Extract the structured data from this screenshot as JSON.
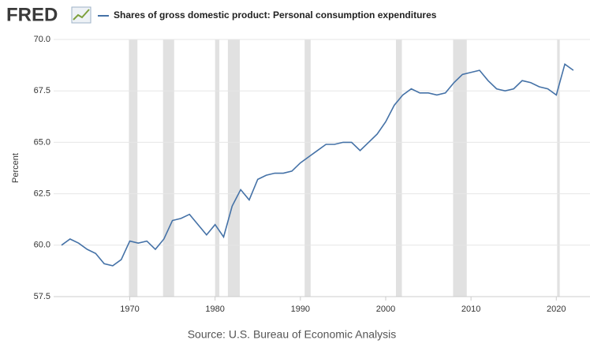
{
  "chart_data": {
    "type": "line",
    "logo": "FRED",
    "y_label": "Percent",
    "source": "Source: U.S. Bureau of Economic Analysis",
    "x": [
      1962,
      1963,
      1964,
      1965,
      1966,
      1967,
      1968,
      1969,
      1970,
      1971,
      1972,
      1973,
      1974,
      1975,
      1976,
      1977,
      1978,
      1979,
      1980,
      1981,
      1982,
      1983,
      1984,
      1985,
      1986,
      1987,
      1988,
      1989,
      1990,
      1991,
      1992,
      1993,
      1994,
      1995,
      1996,
      1997,
      1998,
      1999,
      2000,
      2001,
      2002,
      2003,
      2004,
      2005,
      2006,
      2007,
      2008,
      2009,
      2010,
      2011,
      2012,
      2013,
      2014,
      2015,
      2016,
      2017,
      2018,
      2019,
      2020,
      2021,
      2022
    ],
    "series": [
      {
        "name": "Shares of gross domestic product: Personal consumption expenditures",
        "color": "#4572a7",
        "values": [
          60.0,
          60.3,
          60.1,
          59.8,
          59.6,
          59.1,
          59.0,
          59.3,
          60.2,
          60.1,
          60.2,
          59.8,
          60.3,
          61.2,
          61.3,
          61.5,
          61.0,
          60.5,
          61.0,
          60.4,
          61.9,
          62.7,
          62.2,
          63.2,
          63.4,
          63.5,
          63.5,
          63.6,
          64.0,
          64.3,
          64.6,
          64.9,
          64.9,
          65.0,
          65.0,
          64.6,
          65.0,
          65.4,
          66.0,
          66.8,
          67.3,
          67.6,
          67.4,
          67.4,
          67.3,
          67.4,
          67.9,
          68.3,
          68.4,
          68.5,
          68.0,
          67.6,
          67.5,
          67.6,
          68.0,
          67.9,
          67.7,
          67.6,
          67.3,
          68.8,
          68.5
        ]
      }
    ],
    "recessions": [
      [
        1969.9,
        1970.9
      ],
      [
        1973.9,
        1975.2
      ],
      [
        1980.0,
        1980.5
      ],
      [
        1981.5,
        1982.9
      ],
      [
        1990.5,
        1991.2
      ],
      [
        2001.2,
        2001.9
      ],
      [
        2007.9,
        2009.5
      ],
      [
        2020.1,
        2020.4
      ]
    ],
    "recession_color": "#e1e1e1",
    "xlim": [
      1962,
      2022.1
    ],
    "xticks": [
      1970,
      1980,
      1990,
      2000,
      2010,
      2020
    ],
    "ylim": [
      57.5,
      70
    ],
    "yticks": [
      57.5,
      {
        "value": 60,
        "label": "60.0"
      },
      62.5,
      {
        "value": 65,
        "label": "65.0"
      },
      67.5,
      {
        "value": 70,
        "label": "70.0"
      }
    ],
    "grid": true
  }
}
